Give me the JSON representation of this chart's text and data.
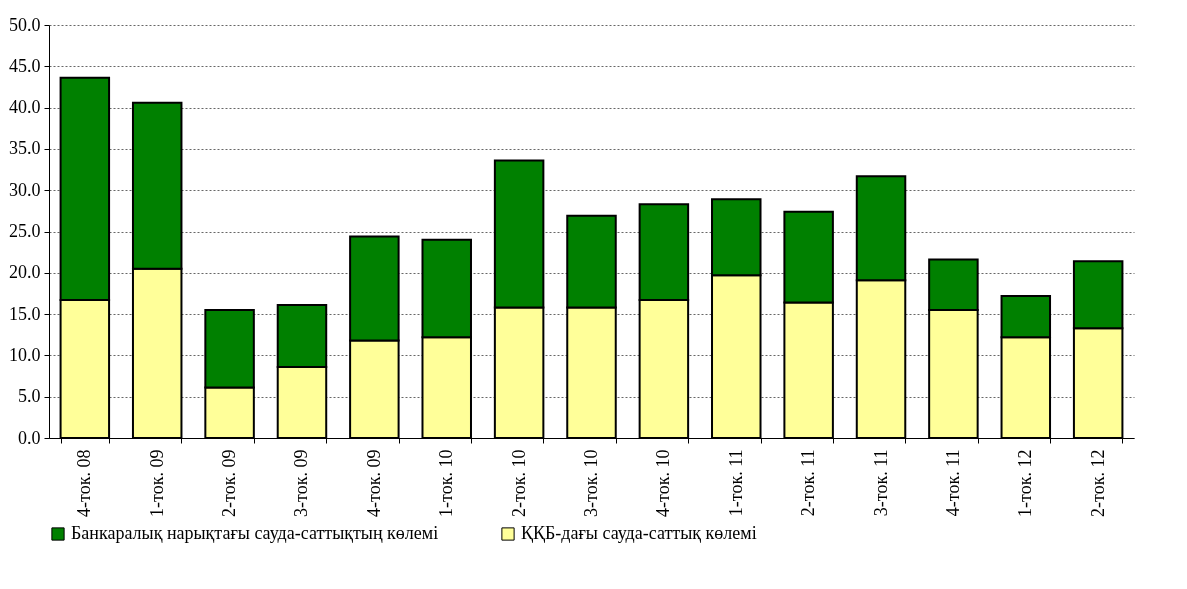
{
  "chart_data": {
    "type": "bar",
    "stacked": true,
    "categories": [
      "4-ток. 08",
      "1-ток. 09",
      "2-ток. 09",
      "3-ток. 09",
      "4-ток. 09",
      "1-ток. 10",
      "2-ток. 10",
      "3-ток. 10",
      "4-ток. 10",
      "1-ток. 11",
      "2-ток. 11",
      "3-ток. 11",
      "4-ток. 11",
      "1-ток. 12",
      "2-ток. 12"
    ],
    "series": [
      {
        "name": "ҚҚБ-дағы сауда-саттық көлемі",
        "color": "#ffff99",
        "values": [
          16.7,
          20.5,
          6.1,
          8.6,
          11.8,
          12.2,
          15.8,
          15.8,
          16.7,
          19.7,
          16.4,
          19.1,
          15.5,
          12.2,
          13.3
        ]
      },
      {
        "name": "Банкаралық нарықтағы сауда-саттықтың көлемі",
        "color": "#008000",
        "values": [
          26.9,
          20.1,
          9.4,
          7.5,
          12.6,
          11.8,
          17.8,
          11.1,
          11.6,
          9.2,
          11.0,
          12.6,
          6.1,
          5.0,
          8.1
        ]
      }
    ],
    "ylim": [
      0,
      50
    ],
    "yticks": [
      {
        "value": 0,
        "label": "0.0"
      },
      {
        "value": 5,
        "label": "5.0"
      },
      {
        "value": 10,
        "label": "10.0"
      },
      {
        "value": 15,
        "label": "15.0"
      },
      {
        "value": 20,
        "label": "20.0"
      },
      {
        "value": 25,
        "label": "25.0"
      },
      {
        "value": 30,
        "label": "30.0"
      },
      {
        "value": 35,
        "label": "35.0"
      },
      {
        "value": 40,
        "label": "40.0"
      },
      {
        "value": 45,
        "label": "45.0"
      },
      {
        "value": 50,
        "label": "50.0"
      }
    ],
    "grid": "y",
    "legend": "bottom"
  }
}
